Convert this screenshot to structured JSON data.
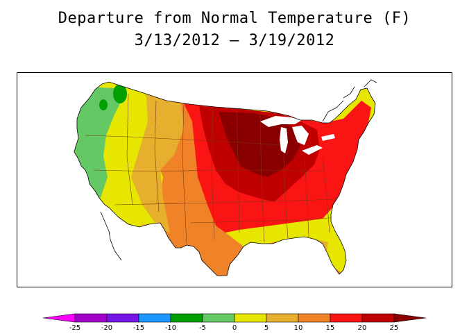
{
  "title": {
    "line1": "Departure from Normal Temperature (F)",
    "line2": "3/13/2012 – 3/19/2012"
  },
  "colors": {
    "frame": "#000000",
    "country_fill": "#ffffff",
    "state_lines": "#7a3a10",
    "water": "#ffffff"
  },
  "map": {
    "region": "contiguous-united-states",
    "field": "temperature-departure-F",
    "regional_departures": [
      {
        "region": "washington-coast",
        "approx_value": -3
      },
      {
        "region": "oregon-california-coast",
        "approx_value": -2
      },
      {
        "region": "interior-west-great-basin",
        "approx_value": 3
      },
      {
        "region": "northern-rockies",
        "approx_value": 8
      },
      {
        "region": "southwest",
        "approx_value": 4
      },
      {
        "region": "high-plains",
        "approx_value": 14
      },
      {
        "region": "texas",
        "approx_value": 12
      },
      {
        "region": "northern-plains",
        "approx_value": 22
      },
      {
        "region": "upper-midwest-great-lakes",
        "approx_value": 26
      },
      {
        "region": "ohio-valley",
        "approx_value": 21
      },
      {
        "region": "southeast",
        "approx_value": 14
      },
      {
        "region": "florida-peninsula",
        "approx_value": 6
      },
      {
        "region": "mid-atlantic",
        "approx_value": 18
      },
      {
        "region": "new-england",
        "approx_value": 15
      }
    ]
  },
  "legend": {
    "tick_labels": [
      "-25",
      "-20",
      "-15",
      "-10",
      "-5",
      "0",
      "5",
      "10",
      "15",
      "20",
      "25"
    ],
    "colors": [
      "#ff00ff",
      "#a000c8",
      "#7816e6",
      "#1e96ff",
      "#00a000",
      "#64c864",
      "#e6e600",
      "#e6af2d",
      "#f08228",
      "#fa1414",
      "#c00000",
      "#8a0000"
    ],
    "under_color": "#ff00ff",
    "over_color": "#8a0000"
  }
}
